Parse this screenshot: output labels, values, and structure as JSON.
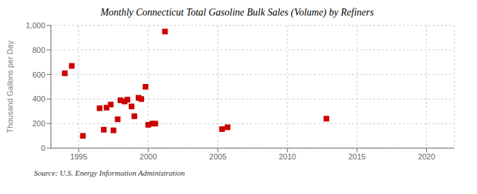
{
  "chart_data": {
    "type": "scatter",
    "title": "Monthly Connecticut Total Gasoline Bulk Sales (Volume) by Refiners",
    "ylabel": "Thousand Gallons per Day",
    "annotations": [
      "Source: U.S. Energy Information Administration"
    ],
    "x": [
      1994.0,
      1994.5,
      1995.3,
      1996.5,
      1996.8,
      1997.0,
      1997.3,
      1997.5,
      1997.8,
      1998.0,
      1998.3,
      1998.5,
      1998.8,
      1999.0,
      1999.3,
      1999.5,
      1999.8,
      2000.0,
      2000.3,
      2000.5,
      2001.2,
      2005.3,
      2005.7,
      2012.8
    ],
    "values": [
      610,
      670,
      100,
      325,
      150,
      330,
      355,
      145,
      235,
      390,
      380,
      395,
      340,
      260,
      410,
      400,
      500,
      190,
      200,
      200,
      950,
      155,
      170,
      240
    ],
    "color": "#cc0000",
    "marker": "square",
    "xlim": [
      1993,
      2022
    ],
    "ylim": [
      0,
      1000
    ],
    "xticks": [
      1995,
      2000,
      2005,
      2010,
      2015,
      2020
    ],
    "yticks": [
      0,
      200,
      400,
      600,
      800,
      {
        "value": 1000,
        "label": "1,000"
      }
    ],
    "grid": true
  }
}
